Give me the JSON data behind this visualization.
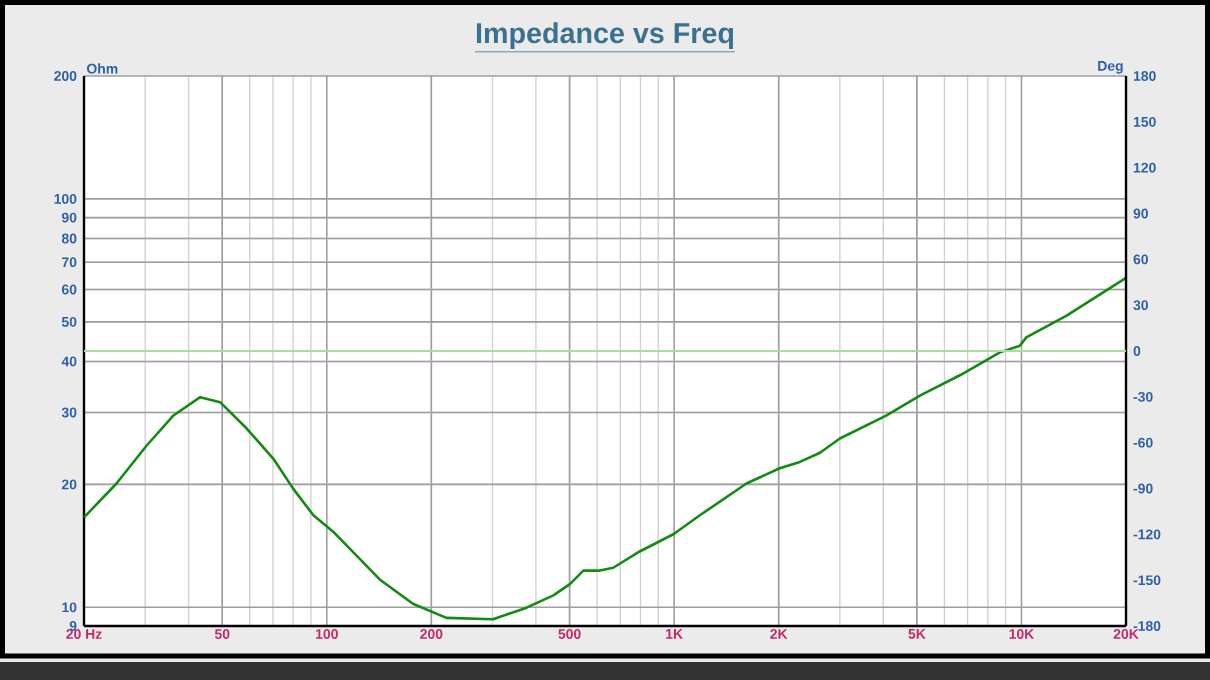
{
  "chart_data": {
    "type": "line",
    "title": "Impedance vs Freq",
    "ylabel": "Ohm",
    "y2label": "Deg",
    "log": "xy",
    "grid": true,
    "xlim": [
      20,
      20000
    ],
    "ylim": [
      9,
      200
    ],
    "y2lim": [
      -180,
      180
    ],
    "xticks": [
      {
        "value": 20,
        "label": "20 Hz"
      },
      50,
      100,
      200,
      500,
      {
        "value": 1000,
        "label": "1K"
      },
      {
        "value": 2000,
        "label": "2K"
      },
      {
        "value": 5000,
        "label": "5K"
      },
      {
        "value": 10000,
        "label": "10K"
      },
      {
        "value": 20000,
        "label": "20K"
      }
    ],
    "yticks": [
      9,
      10,
      20,
      30,
      40,
      50,
      60,
      70,
      80,
      90,
      100,
      200
    ],
    "y2ticks": [
      -180,
      -150,
      -120,
      -90,
      -60,
      -30,
      0,
      30,
      60,
      90,
      120,
      150,
      180
    ],
    "ref_lines": [
      {
        "axis": "y2",
        "value": 0,
        "color": "#a8dca0"
      }
    ],
    "x": [
      20,
      24.8,
      30.3,
      36.2,
      43.2,
      49.3,
      58.8,
      70.2,
      80.1,
      91.5,
      104.5,
      142,
      177,
      221,
      301,
      376,
      449,
      501,
      548,
      611,
      668,
      796,
      995,
      1186,
      1615,
      2014,
      2302,
      2630,
      3000,
      4090,
      5100,
      6650,
      8670,
      9890,
      10330,
      13490,
      20000
    ],
    "series": [
      {
        "color": "#138a13",
        "values": [
          16.6,
          20.1,
          24.9,
          29.5,
          32.7,
          31.8,
          27.4,
          23.1,
          19.5,
          16.8,
          15.3,
          11.7,
          10.2,
          9.42,
          9.35,
          9.98,
          10.7,
          11.4,
          12.3,
          12.3,
          12.5,
          13.7,
          15.1,
          16.8,
          20.1,
          21.9,
          22.7,
          23.9,
          25.9,
          29.5,
          33.0,
          37.0,
          42.1,
          43.7,
          45.8,
          51.8,
          64.1
        ]
      }
    ]
  }
}
